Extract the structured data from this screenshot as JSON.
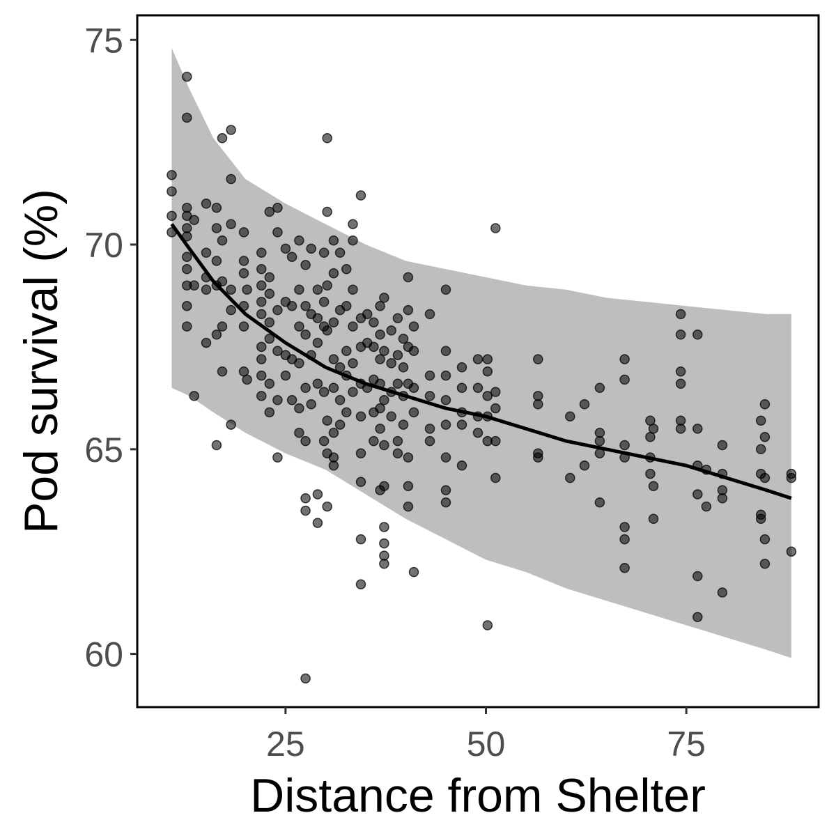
{
  "chart_data": {
    "type": "scatter",
    "xlabel": "Distance from Shelter",
    "ylabel": "Pod survival (%)",
    "xlim": [
      6.5,
      91.5
    ],
    "ylim": [
      58.7,
      75.6
    ],
    "xticks": [
      25,
      50,
      75
    ],
    "yticks": [
      60,
      65,
      70,
      75
    ],
    "grid": false,
    "colors": {
      "points": "#000000",
      "points_opacity": 0.55,
      "band": "#bebebe",
      "line": "#000000"
    },
    "points": [
      [
        10.8,
        71.7
      ],
      [
        10.8,
        71.3
      ],
      [
        10.8,
        70.7
      ],
      [
        10.8,
        70.3
      ],
      [
        12.7,
        74.1
      ],
      [
        12.7,
        73.1
      ],
      [
        12.7,
        70.9
      ],
      [
        12.7,
        70.7
      ],
      [
        12.7,
        70.4
      ],
      [
        12.7,
        70.2
      ],
      [
        12.7,
        69.7
      ],
      [
        12.7,
        69.4
      ],
      [
        12.7,
        69.0
      ],
      [
        12.7,
        68.5
      ],
      [
        12.7,
        68.0
      ],
      [
        13.6,
        70.6
      ],
      [
        13.6,
        69.0
      ],
      [
        13.6,
        66.3
      ],
      [
        15.1,
        71.0
      ],
      [
        15.1,
        69.8
      ],
      [
        15.1,
        69.2
      ],
      [
        15.1,
        68.9
      ],
      [
        15.1,
        67.6
      ],
      [
        16.4,
        70.9
      ],
      [
        16.4,
        70.4
      ],
      [
        16.4,
        69.6
      ],
      [
        16.4,
        69.0
      ],
      [
        16.4,
        67.8
      ],
      [
        16.4,
        65.1
      ],
      [
        17.1,
        72.6
      ],
      [
        17.1,
        70.1
      ],
      [
        17.1,
        69.1
      ],
      [
        17.1,
        68.0
      ],
      [
        17.1,
        66.9
      ],
      [
        18.2,
        72.8
      ],
      [
        18.2,
        71.6
      ],
      [
        18.2,
        70.5
      ],
      [
        18.2,
        68.9
      ],
      [
        18.2,
        68.4
      ],
      [
        18.2,
        65.6
      ],
      [
        19.8,
        70.3
      ],
      [
        19.8,
        69.6
      ],
      [
        19.8,
        69.3
      ],
      [
        19.8,
        68.5
      ],
      [
        19.8,
        68.0
      ],
      [
        19.8,
        66.9
      ],
      [
        20.2,
        68.9
      ],
      [
        20.2,
        66.7
      ],
      [
        22.0,
        69.8
      ],
      [
        22.0,
        69.4
      ],
      [
        22.0,
        69.0
      ],
      [
        22.0,
        68.6
      ],
      [
        22.0,
        68.3
      ],
      [
        22.0,
        67.5
      ],
      [
        22.0,
        67.2
      ],
      [
        22.0,
        66.8
      ],
      [
        22.0,
        66.3
      ],
      [
        23.0,
        70.8
      ],
      [
        23.0,
        69.2
      ],
      [
        23.0,
        68.8
      ],
      [
        23.0,
        68.1
      ],
      [
        23.0,
        67.7
      ],
      [
        23.0,
        66.6
      ],
      [
        23.0,
        65.9
      ],
      [
        24.0,
        70.9
      ],
      [
        24.0,
        70.3
      ],
      [
        24.0,
        68.4
      ],
      [
        24.0,
        67.4
      ],
      [
        24.0,
        66.2
      ],
      [
        24.0,
        64.8
      ],
      [
        25.0,
        69.9
      ],
      [
        25.0,
        68.6
      ],
      [
        25.0,
        67.3
      ],
      [
        25.0,
        66.8
      ],
      [
        25.8,
        69.7
      ],
      [
        25.8,
        68.5
      ],
      [
        25.8,
        67.2
      ],
      [
        25.8,
        66.2
      ],
      [
        26.7,
        70.1
      ],
      [
        26.7,
        68.9
      ],
      [
        26.7,
        68.0
      ],
      [
        26.7,
        67.1
      ],
      [
        26.7,
        66.0
      ],
      [
        26.7,
        65.4
      ],
      [
        27.5,
        69.5
      ],
      [
        27.5,
        68.5
      ],
      [
        27.5,
        67.8
      ],
      [
        27.5,
        66.5
      ],
      [
        27.5,
        65.2
      ],
      [
        27.5,
        63.8
      ],
      [
        27.5,
        63.5
      ],
      [
        27.5,
        59.4
      ],
      [
        28.2,
        69.9
      ],
      [
        28.2,
        68.3
      ],
      [
        28.2,
        67.3
      ],
      [
        28.2,
        66.1
      ],
      [
        29.0,
        68.9
      ],
      [
        29.0,
        68.2
      ],
      [
        29.0,
        67.6
      ],
      [
        29.0,
        66.6
      ],
      [
        29.0,
        63.9
      ],
      [
        29.0,
        63.2
      ],
      [
        29.8,
        69.8
      ],
      [
        29.8,
        68.6
      ],
      [
        29.8,
        68.0
      ],
      [
        29.8,
        66.4
      ],
      [
        29.8,
        65.2
      ],
      [
        30.2,
        72.6
      ],
      [
        30.2,
        70.8
      ],
      [
        30.2,
        69.0
      ],
      [
        30.2,
        67.9
      ],
      [
        30.2,
        65.7
      ],
      [
        30.2,
        64.9
      ],
      [
        30.2,
        63.6
      ],
      [
        31.0,
        70.1
      ],
      [
        31.0,
        69.3
      ],
      [
        31.0,
        68.1
      ],
      [
        31.0,
        67.2
      ],
      [
        31.0,
        66.5
      ],
      [
        31.0,
        65.4
      ],
      [
        31.0,
        64.8
      ],
      [
        31.0,
        64.6
      ],
      [
        31.8,
        69.8
      ],
      [
        31.8,
        68.4
      ],
      [
        31.8,
        67.0
      ],
      [
        31.8,
        66.2
      ],
      [
        31.8,
        65.6
      ],
      [
        32.6,
        69.4
      ],
      [
        32.6,
        68.5
      ],
      [
        32.6,
        67.4
      ],
      [
        32.6,
        66.8
      ],
      [
        32.6,
        65.9
      ],
      [
        33.4,
        70.5
      ],
      [
        33.4,
        70.1
      ],
      [
        33.4,
        68.9
      ],
      [
        33.4,
        68.0
      ],
      [
        33.4,
        67.1
      ],
      [
        33.4,
        66.4
      ],
      [
        34.4,
        71.2
      ],
      [
        34.4,
        68.2
      ],
      [
        34.4,
        67.5
      ],
      [
        34.4,
        66.6
      ],
      [
        34.4,
        65.8
      ],
      [
        34.4,
        64.9
      ],
      [
        34.4,
        64.2
      ],
      [
        34.4,
        62.8
      ],
      [
        34.4,
        61.7
      ],
      [
        35.2,
        68.3
      ],
      [
        35.2,
        67.6
      ],
      [
        35.2,
        66.5
      ],
      [
        36.0,
        68.1
      ],
      [
        36.0,
        67.5
      ],
      [
        36.0,
        66.7
      ],
      [
        36.0,
        65.9
      ],
      [
        36.0,
        65.2
      ],
      [
        36.8,
        68.5
      ],
      [
        36.8,
        67.8
      ],
      [
        36.8,
        67.2
      ],
      [
        36.8,
        66.6
      ],
      [
        36.8,
        66.0
      ],
      [
        36.8,
        65.5
      ],
      [
        36.8,
        64.0
      ],
      [
        37.3,
        68.7
      ],
      [
        37.3,
        67.4
      ],
      [
        37.3,
        66.2
      ],
      [
        37.3,
        65.1
      ],
      [
        37.3,
        64.1
      ],
      [
        37.3,
        63.1
      ],
      [
        37.3,
        62.7
      ],
      [
        37.3,
        62.4
      ],
      [
        37.3,
        62.2
      ],
      [
        38.2,
        67.9
      ],
      [
        38.2,
        67.1
      ],
      [
        38.2,
        66.4
      ],
      [
        38.2,
        65.8
      ],
      [
        39.0,
        68.2
      ],
      [
        39.0,
        67.3
      ],
      [
        39.0,
        66.6
      ],
      [
        39.0,
        65.2
      ],
      [
        39.0,
        64.9
      ],
      [
        39.7,
        67.7
      ],
      [
        39.7,
        67.0
      ],
      [
        39.7,
        66.3
      ],
      [
        39.7,
        65.6
      ],
      [
        40.3,
        69.2
      ],
      [
        40.3,
        68.4
      ],
      [
        40.3,
        67.5
      ],
      [
        40.3,
        66.6
      ],
      [
        40.3,
        64.8
      ],
      [
        40.3,
        64.1
      ],
      [
        40.3,
        63.6
      ],
      [
        41.0,
        68.0
      ],
      [
        41.0,
        67.4
      ],
      [
        41.0,
        66.5
      ],
      [
        41.0,
        65.9
      ],
      [
        41.0,
        62.0
      ],
      [
        43.0,
        68.3
      ],
      [
        43.0,
        66.8
      ],
      [
        43.0,
        66.3
      ],
      [
        43.0,
        65.5
      ],
      [
        43.0,
        65.2
      ],
      [
        45.0,
        68.9
      ],
      [
        45.0,
        67.4
      ],
      [
        45.0,
        66.8
      ],
      [
        45.0,
        66.2
      ],
      [
        45.0,
        65.6
      ],
      [
        45.0,
        64.8
      ],
      [
        45.0,
        64.0
      ],
      [
        45.0,
        63.7
      ],
      [
        47.0,
        67.0
      ],
      [
        47.0,
        66.5
      ],
      [
        47.0,
        65.9
      ],
      [
        47.0,
        65.6
      ],
      [
        47.0,
        64.6
      ],
      [
        49.0,
        67.2
      ],
      [
        49.0,
        66.5
      ],
      [
        49.0,
        65.8
      ],
      [
        49.0,
        65.4
      ],
      [
        50.2,
        67.2
      ],
      [
        50.2,
        66.9
      ],
      [
        50.2,
        66.3
      ],
      [
        50.2,
        65.8
      ],
      [
        50.2,
        65.2
      ],
      [
        50.2,
        60.7
      ],
      [
        51.2,
        70.4
      ],
      [
        51.2,
        66.4
      ],
      [
        51.2,
        66.0
      ],
      [
        51.2,
        65.2
      ],
      [
        51.2,
        64.3
      ],
      [
        56.5,
        67.2
      ],
      [
        56.5,
        66.3
      ],
      [
        56.5,
        66.1
      ],
      [
        56.5,
        64.9
      ],
      [
        56.5,
        64.8
      ],
      [
        60.5,
        65.8
      ],
      [
        60.5,
        64.3
      ],
      [
        62.3,
        66.1
      ],
      [
        62.3,
        64.6
      ],
      [
        64.2,
        66.5
      ],
      [
        64.2,
        65.4
      ],
      [
        64.2,
        65.2
      ],
      [
        64.2,
        64.9
      ],
      [
        64.2,
        63.7
      ],
      [
        67.3,
        67.2
      ],
      [
        67.3,
        66.7
      ],
      [
        67.3,
        65.1
      ],
      [
        67.3,
        64.8
      ],
      [
        67.3,
        63.1
      ],
      [
        67.3,
        62.8
      ],
      [
        67.3,
        62.1
      ],
      [
        70.5,
        65.7
      ],
      [
        70.5,
        65.3
      ],
      [
        70.5,
        64.8
      ],
      [
        70.5,
        64.4
      ],
      [
        70.9,
        65.5
      ],
      [
        70.9,
        64.1
      ],
      [
        70.9,
        63.3
      ],
      [
        74.3,
        68.3
      ],
      [
        74.3,
        67.8
      ],
      [
        74.3,
        66.9
      ],
      [
        74.3,
        66.6
      ],
      [
        74.3,
        65.7
      ],
      [
        74.3,
        65.5
      ],
      [
        76.4,
        67.8
      ],
      [
        76.4,
        65.5
      ],
      [
        76.4,
        64.6
      ],
      [
        76.4,
        63.9
      ],
      [
        76.4,
        61.9
      ],
      [
        76.4,
        60.9
      ],
      [
        77.5,
        64.5
      ],
      [
        77.5,
        63.6
      ],
      [
        79.5,
        65.1
      ],
      [
        79.5,
        64.4
      ],
      [
        79.5,
        64.0
      ],
      [
        79.5,
        63.8
      ],
      [
        79.5,
        61.5
      ],
      [
        84.3,
        65.7
      ],
      [
        84.3,
        65.0
      ],
      [
        84.3,
        64.4
      ],
      [
        84.3,
        63.4
      ],
      [
        84.3,
        63.3
      ],
      [
        84.8,
        66.1
      ],
      [
        84.8,
        65.3
      ],
      [
        84.8,
        64.3
      ],
      [
        84.8,
        62.8
      ],
      [
        84.8,
        62.2
      ],
      [
        88.1,
        64.4
      ],
      [
        88.1,
        64.3
      ],
      [
        88.1,
        62.5
      ]
    ],
    "fit_curve": {
      "x": [
        10.8,
        13,
        16,
        20,
        25,
        30,
        35,
        40,
        45,
        50,
        55,
        60,
        65,
        70,
        75,
        80,
        85,
        88.1
      ],
      "y": [
        70.5,
        69.9,
        69.1,
        68.3,
        67.6,
        67.0,
        66.6,
        66.3,
        66.0,
        65.8,
        65.5,
        65.2,
        65.0,
        64.8,
        64.6,
        64.3,
        64.0,
        63.8
      ]
    },
    "ci_band": {
      "x": [
        10.8,
        13,
        16,
        20,
        25,
        30,
        35,
        40,
        45,
        50,
        55,
        60,
        65,
        70,
        75,
        80,
        85,
        88.1
      ],
      "upper": [
        74.8,
        73.8,
        72.6,
        71.6,
        71.0,
        70.5,
        70.0,
        69.6,
        69.4,
        69.2,
        69.0,
        68.9,
        68.7,
        68.6,
        68.5,
        68.4,
        68.3,
        68.3
      ],
      "lower": [
        66.5,
        66.3,
        65.9,
        65.4,
        64.9,
        64.5,
        63.9,
        63.3,
        62.8,
        62.3,
        62.0,
        61.6,
        61.3,
        61.0,
        60.7,
        60.4,
        60.1,
        59.9
      ]
    }
  }
}
